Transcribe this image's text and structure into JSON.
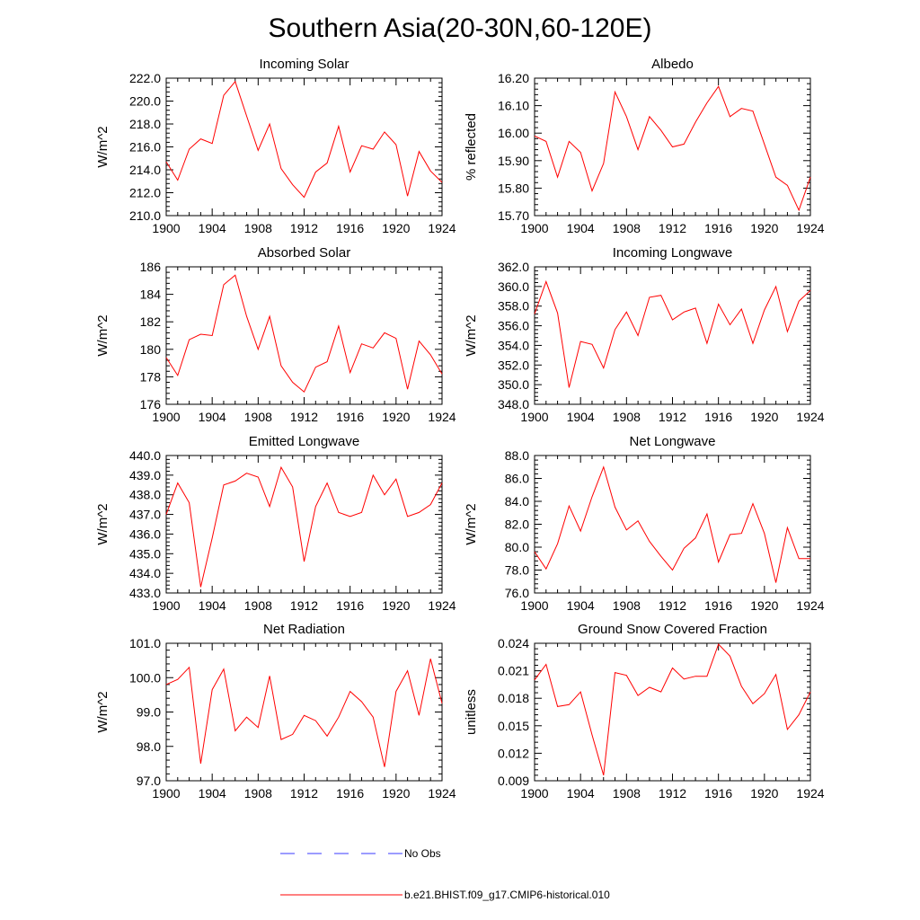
{
  "title": "Southern Asia(20-30N,60-120E)",
  "colors": {
    "model": "#ff0000",
    "obs": "#3a3aff"
  },
  "legend": {
    "obs_label": "No Obs",
    "model_label": "b.e21.BHIST.f09_g17.CMIP6-historical.010"
  },
  "chart_data": [
    {
      "type": "line",
      "title": "Incoming Solar",
      "ylabel": "W/m^2",
      "xlim": [
        1900,
        1924
      ],
      "ylim": [
        210.0,
        222.0
      ],
      "xticks": [
        "1900",
        "1904",
        "1908",
        "1912",
        "1916",
        "1920",
        "1924"
      ],
      "yticks": [
        "210.0",
        "212.0",
        "214.0",
        "216.0",
        "218.0",
        "220.0",
        "222.0"
      ],
      "grid": false,
      "series": [
        {
          "name": "b.e21.BHIST.f09_g17.CMIP6-historical.010",
          "x": [
            1900,
            1901,
            1902,
            1903,
            1904,
            1905,
            1906,
            1907,
            1908,
            1909,
            1910,
            1911,
            1912,
            1913,
            1914,
            1915,
            1916,
            1917,
            1918,
            1919,
            1920,
            1921,
            1922,
            1923,
            1924
          ],
          "values": [
            214.7,
            213.1,
            215.8,
            216.7,
            216.3,
            220.5,
            221.7,
            218.7,
            215.7,
            218.0,
            214.1,
            212.7,
            211.6,
            213.8,
            214.6,
            217.8,
            213.8,
            216.1,
            215.8,
            217.3,
            216.2,
            211.7,
            215.6,
            213.9,
            212.9
          ]
        }
      ]
    },
    {
      "type": "line",
      "title": "Albedo",
      "ylabel": "% reflected",
      "xlim": [
        1900,
        1924
      ],
      "ylim": [
        15.7,
        16.2
      ],
      "xticks": [
        "1900",
        "1904",
        "1908",
        "1912",
        "1916",
        "1920",
        "1924"
      ],
      "yticks": [
        "15.70",
        "15.80",
        "15.90",
        "16.00",
        "16.10",
        "16.20"
      ],
      "grid": false,
      "series": [
        {
          "name": "b.e21.BHIST.f09_g17.CMIP6-historical.010",
          "x": [
            1900,
            1901,
            1902,
            1903,
            1904,
            1905,
            1906,
            1907,
            1908,
            1909,
            1910,
            1911,
            1912,
            1913,
            1914,
            1915,
            1916,
            1917,
            1918,
            1919,
            1920,
            1921,
            1922,
            1923,
            1924
          ],
          "values": [
            15.99,
            15.97,
            15.84,
            15.97,
            15.93,
            15.79,
            15.89,
            16.15,
            16.06,
            15.94,
            16.06,
            16.01,
            15.95,
            15.96,
            16.04,
            16.11,
            16.17,
            16.06,
            16.09,
            16.08,
            15.96,
            15.84,
            15.81,
            15.72,
            15.84
          ]
        }
      ]
    },
    {
      "type": "line",
      "title": "Absorbed Solar",
      "ylabel": "W/m^2",
      "xlim": [
        1900,
        1924
      ],
      "ylim": [
        176,
        186
      ],
      "xticks": [
        "1900",
        "1904",
        "1908",
        "1912",
        "1916",
        "1920",
        "1924"
      ],
      "yticks": [
        "176",
        "178",
        "180",
        "182",
        "184",
        "186"
      ],
      "grid": false,
      "series": [
        {
          "name": "b.e21.BHIST.f09_g17.CMIP6-historical.010",
          "x": [
            1900,
            1901,
            1902,
            1903,
            1904,
            1905,
            1906,
            1907,
            1908,
            1909,
            1910,
            1911,
            1912,
            1913,
            1914,
            1915,
            1916,
            1917,
            1918,
            1919,
            1920,
            1921,
            1922,
            1923,
            1924
          ],
          "values": [
            179.4,
            178.1,
            180.7,
            181.1,
            181.0,
            184.7,
            185.4,
            182.4,
            180.0,
            182.4,
            178.8,
            177.6,
            176.9,
            178.7,
            179.1,
            181.7,
            178.3,
            180.4,
            180.1,
            181.2,
            180.8,
            177.1,
            180.6,
            179.6,
            178.2
          ]
        }
      ]
    },
    {
      "type": "line",
      "title": "Incoming Longwave",
      "ylabel": "W/m^2",
      "xlim": [
        1900,
        1924
      ],
      "ylim": [
        348.0,
        362.0
      ],
      "xticks": [
        "1900",
        "1904",
        "1908",
        "1912",
        "1916",
        "1920",
        "1924"
      ],
      "yticks": [
        "348.0",
        "350.0",
        "352.0",
        "354.0",
        "356.0",
        "358.0",
        "360.0",
        "362.0"
      ],
      "grid": false,
      "series": [
        {
          "name": "b.e21.BHIST.f09_g17.CMIP6-historical.010",
          "x": [
            1900,
            1901,
            1902,
            1903,
            1904,
            1905,
            1906,
            1907,
            1908,
            1909,
            1910,
            1911,
            1912,
            1913,
            1914,
            1915,
            1916,
            1917,
            1918,
            1919,
            1920,
            1921,
            1922,
            1923,
            1924
          ],
          "values": [
            357.2,
            360.5,
            357.3,
            349.7,
            354.4,
            354.1,
            351.7,
            355.6,
            357.4,
            355.0,
            358.9,
            359.1,
            356.6,
            357.4,
            357.8,
            354.2,
            358.2,
            356.1,
            357.7,
            354.2,
            357.6,
            360.0,
            355.4,
            358.5,
            359.6
          ]
        }
      ]
    },
    {
      "type": "line",
      "title": "Emitted Longwave",
      "ylabel": "W/m^2",
      "xlim": [
        1900,
        1924
      ],
      "ylim": [
        433.0,
        440.0
      ],
      "xticks": [
        "1900",
        "1904",
        "1908",
        "1912",
        "1916",
        "1920",
        "1924"
      ],
      "yticks": [
        "433.0",
        "434.0",
        "435.0",
        "436.0",
        "437.0",
        "438.0",
        "439.0",
        "440.0"
      ],
      "grid": false,
      "series": [
        {
          "name": "b.e21.BHIST.f09_g17.CMIP6-historical.010",
          "x": [
            1900,
            1901,
            1902,
            1903,
            1904,
            1905,
            1906,
            1907,
            1908,
            1909,
            1910,
            1911,
            1912,
            1913,
            1914,
            1915,
            1916,
            1917,
            1918,
            1919,
            1920,
            1921,
            1922,
            1923,
            1924
          ],
          "values": [
            437.0,
            438.6,
            437.6,
            433.3,
            435.8,
            438.5,
            438.7,
            439.1,
            438.9,
            437.4,
            439.4,
            438.4,
            434.6,
            437.4,
            438.6,
            437.1,
            436.9,
            437.1,
            439.0,
            438.0,
            438.8,
            436.9,
            437.1,
            437.5,
            438.6
          ]
        }
      ]
    },
    {
      "type": "line",
      "title": "Net Longwave",
      "ylabel": "W/m^2",
      "xlim": [
        1900,
        1924
      ],
      "ylim": [
        76.0,
        88.0
      ],
      "xticks": [
        "1900",
        "1904",
        "1908",
        "1912",
        "1916",
        "1920",
        "1924"
      ],
      "yticks": [
        "76.0",
        "78.0",
        "80.0",
        "82.0",
        "84.0",
        "86.0",
        "88.0"
      ],
      "grid": false,
      "series": [
        {
          "name": "b.e21.BHIST.f09_g17.CMIP6-historical.010",
          "x": [
            1900,
            1901,
            1902,
            1903,
            1904,
            1905,
            1906,
            1907,
            1908,
            1909,
            1910,
            1911,
            1912,
            1913,
            1914,
            1915,
            1916,
            1917,
            1918,
            1919,
            1920,
            1921,
            1922,
            1923,
            1924
          ],
          "values": [
            79.6,
            78.1,
            80.3,
            83.6,
            81.4,
            84.4,
            87.0,
            83.5,
            81.5,
            82.3,
            80.5,
            79.2,
            78.0,
            79.9,
            80.8,
            82.9,
            78.7,
            81.1,
            81.2,
            83.8,
            81.2,
            76.9,
            81.7,
            79.0,
            79.0
          ]
        }
      ]
    },
    {
      "type": "line",
      "title": "Net Radiation",
      "ylabel": "W/m^2",
      "xlim": [
        1900,
        1924
      ],
      "ylim": [
        97.0,
        101.0
      ],
      "xticks": [
        "1900",
        "1904",
        "1908",
        "1912",
        "1916",
        "1920",
        "1924"
      ],
      "yticks": [
        "97.0",
        "98.0",
        "99.0",
        "100.0",
        "101.0"
      ],
      "grid": false,
      "series": [
        {
          "name": "b.e21.BHIST.f09_g17.CMIP6-historical.010",
          "x": [
            1900,
            1901,
            1902,
            1903,
            1904,
            1905,
            1906,
            1907,
            1908,
            1909,
            1910,
            1911,
            1912,
            1913,
            1914,
            1915,
            1916,
            1917,
            1918,
            1919,
            1920,
            1921,
            1922,
            1923,
            1924
          ],
          "values": [
            99.8,
            99.95,
            100.3,
            97.5,
            99.65,
            100.25,
            98.45,
            98.85,
            98.55,
            100.05,
            98.2,
            98.35,
            98.9,
            98.75,
            98.3,
            98.85,
            99.6,
            99.3,
            98.85,
            97.4,
            99.6,
            100.2,
            98.9,
            100.55,
            99.25
          ]
        }
      ]
    },
    {
      "type": "line",
      "title": "Ground Snow Covered Fraction",
      "ylabel": "unitless",
      "xlim": [
        1900,
        1924
      ],
      "ylim": [
        0.009,
        0.024
      ],
      "xticks": [
        "1900",
        "1904",
        "1908",
        "1912",
        "1916",
        "1920",
        "1924"
      ],
      "yticks": [
        "0.009",
        "0.012",
        "0.015",
        "0.018",
        "0.021",
        "0.024"
      ],
      "grid": false,
      "series": [
        {
          "name": "b.e21.BHIST.f09_g17.CMIP6-historical.010",
          "x": [
            1900,
            1901,
            1902,
            1903,
            1904,
            1905,
            1906,
            1907,
            1908,
            1909,
            1910,
            1911,
            1912,
            1913,
            1914,
            1915,
            1916,
            1917,
            1918,
            1919,
            1920,
            1921,
            1922,
            1923,
            1924
          ],
          "values": [
            0.02,
            0.0217,
            0.0171,
            0.0173,
            0.0187,
            0.014,
            0.0096,
            0.0208,
            0.0205,
            0.0183,
            0.0192,
            0.0187,
            0.0213,
            0.0201,
            0.0204,
            0.0204,
            0.0239,
            0.0226,
            0.0193,
            0.0174,
            0.0185,
            0.0206,
            0.0146,
            0.0162,
            0.0187
          ]
        }
      ]
    }
  ]
}
